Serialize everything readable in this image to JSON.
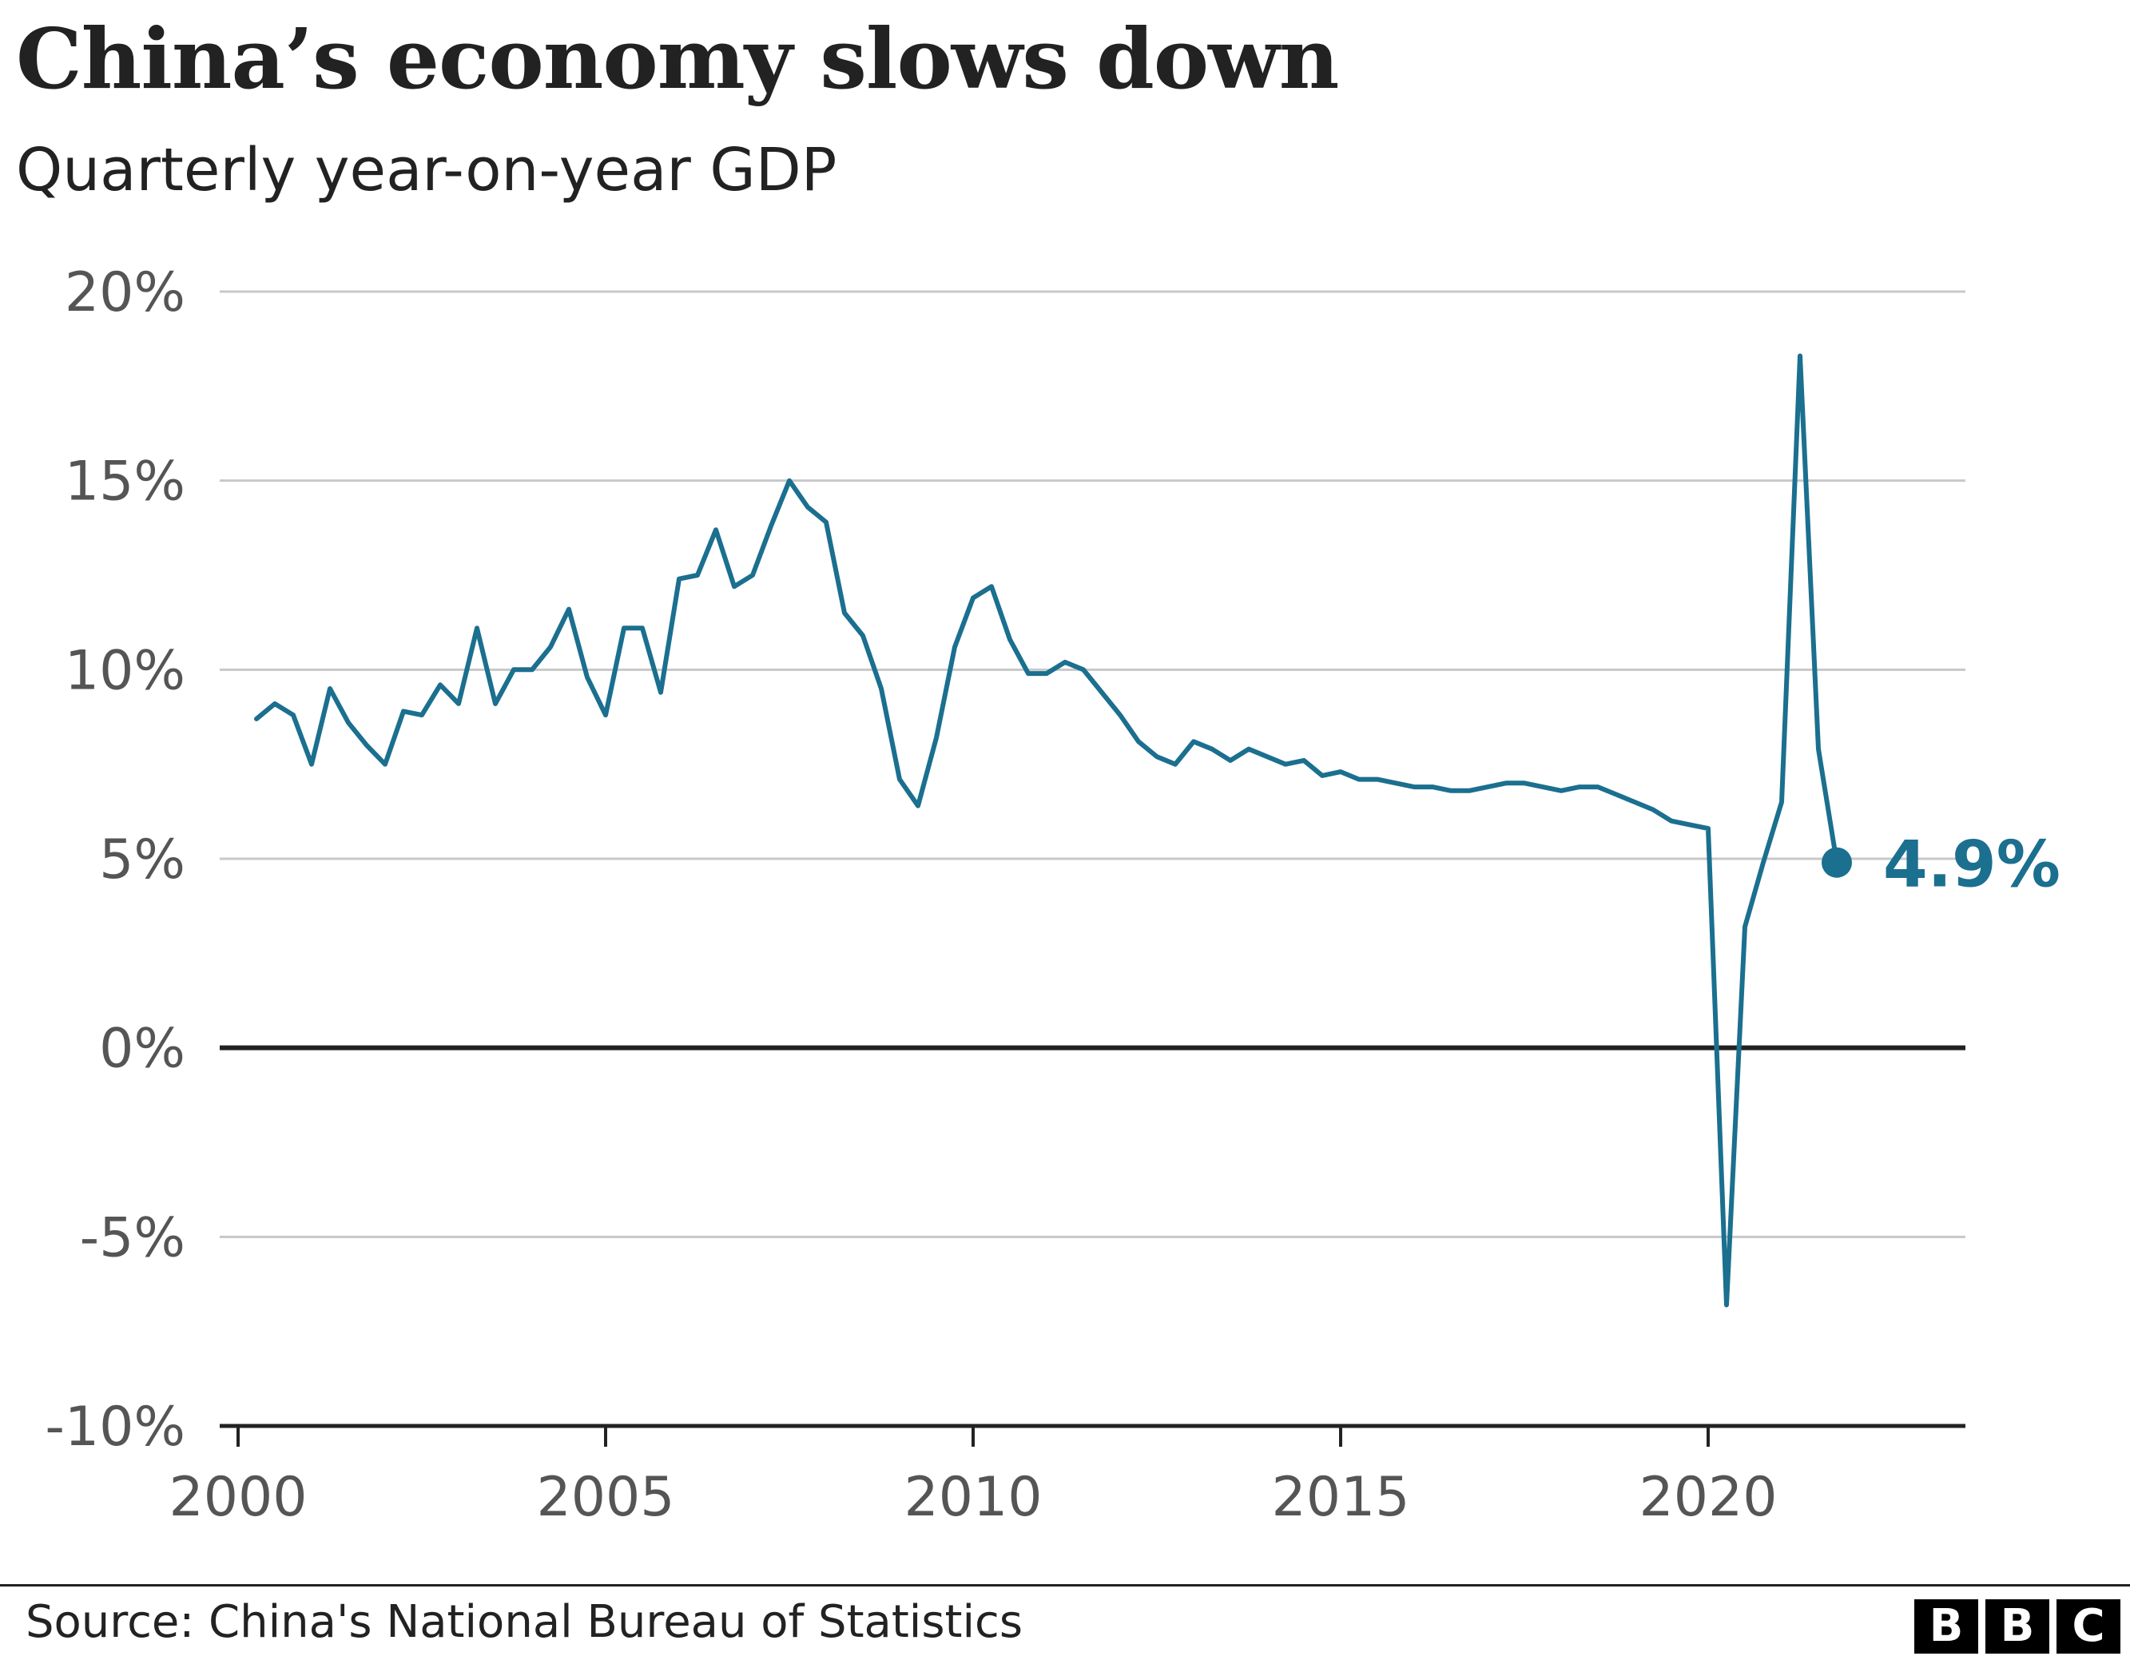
{
  "header": {
    "title": "China’s economy slows down",
    "subtitle": "Quarterly year-on-year GDP"
  },
  "footer": {
    "source": "Source: China's National Bureau of Statistics",
    "logo_letters": [
      "B",
      "B",
      "C"
    ]
  },
  "colors": {
    "series": "#1b6f8f",
    "grid": "#c8c8c8",
    "zero_line": "#222222",
    "tick_text": "#555555"
  },
  "chart_data": {
    "type": "line",
    "title": "China’s economy slows down",
    "subtitle": "Quarterly year-on-year GDP",
    "xlabel": "",
    "ylabel": "",
    "x_ticks": [
      2000,
      2005,
      2010,
      2015,
      2020
    ],
    "x_tick_labels": [
      "2000",
      "2005",
      "2010",
      "2015",
      "2020"
    ],
    "y_ticks": [
      -10,
      -5,
      0,
      5,
      10,
      15,
      20
    ],
    "y_tick_labels": [
      "-10%",
      "-5%",
      "0%",
      "5%",
      "10%",
      "15%",
      "20%"
    ],
    "xlim": [
      1999.75,
      2023.5
    ],
    "ylim": [
      -10,
      20
    ],
    "grid": true,
    "last_value_label": "4.9%",
    "series": [
      {
        "x": [
          2000.25,
          2000.5,
          2000.75,
          2001.0,
          2001.25,
          2001.5,
          2001.75,
          2002.0,
          2002.25,
          2002.5,
          2002.75,
          2003.0,
          2003.25,
          2003.5,
          2003.75,
          2004.0,
          2004.25,
          2004.5,
          2004.75,
          2005.0,
          2005.25,
          2005.5,
          2005.75,
          2006.0,
          2006.25,
          2006.5,
          2006.75,
          2007.0,
          2007.25,
          2007.5,
          2007.75,
          2008.0,
          2008.25,
          2008.5,
          2008.75,
          2009.0,
          2009.25,
          2009.5,
          2009.75,
          2010.0,
          2010.25,
          2010.5,
          2010.75,
          2011.0,
          2011.25,
          2011.5,
          2011.75,
          2012.0,
          2012.25,
          2012.5,
          2012.75,
          2013.0,
          2013.25,
          2013.5,
          2013.75,
          2014.0,
          2014.25,
          2014.5,
          2014.75,
          2015.0,
          2015.25,
          2015.5,
          2015.75,
          2016.0,
          2016.25,
          2016.5,
          2016.75,
          2017.0,
          2017.25,
          2017.5,
          2017.75,
          2018.0,
          2018.25,
          2018.5,
          2018.75,
          2019.0,
          2019.25,
          2019.5,
          2019.75,
          2020.0,
          2020.25,
          2020.5,
          2020.75,
          2021.0,
          2021.25,
          2021.5,
          2021.75
        ],
        "values": [
          8.7,
          9.1,
          8.8,
          7.5,
          9.5,
          8.6,
          8.0,
          7.5,
          8.9,
          8.8,
          9.6,
          9.1,
          11.1,
          9.1,
          10.0,
          10.0,
          10.6,
          11.6,
          9.8,
          8.8,
          11.1,
          11.1,
          9.4,
          12.4,
          12.5,
          13.7,
          12.2,
          12.5,
          13.8,
          15.0,
          14.3,
          13.9,
          11.5,
          10.9,
          9.5,
          7.1,
          6.4,
          8.2,
          10.6,
          11.9,
          12.2,
          10.8,
          9.9,
          9.9,
          10.2,
          10.0,
          9.4,
          8.8,
          8.1,
          7.7,
          7.5,
          8.1,
          7.9,
          7.6,
          7.9,
          7.7,
          7.5,
          7.6,
          7.2,
          7.3,
          7.1,
          7.1,
          7.0,
          6.9,
          6.9,
          6.8,
          6.8,
          6.9,
          7.0,
          7.0,
          6.9,
          6.8,
          6.9,
          6.9,
          6.7,
          6.5,
          6.3,
          6.0,
          5.9,
          5.8,
          -6.8,
          3.2,
          4.9,
          6.5,
          18.3,
          7.9,
          4.9
        ]
      }
    ]
  }
}
